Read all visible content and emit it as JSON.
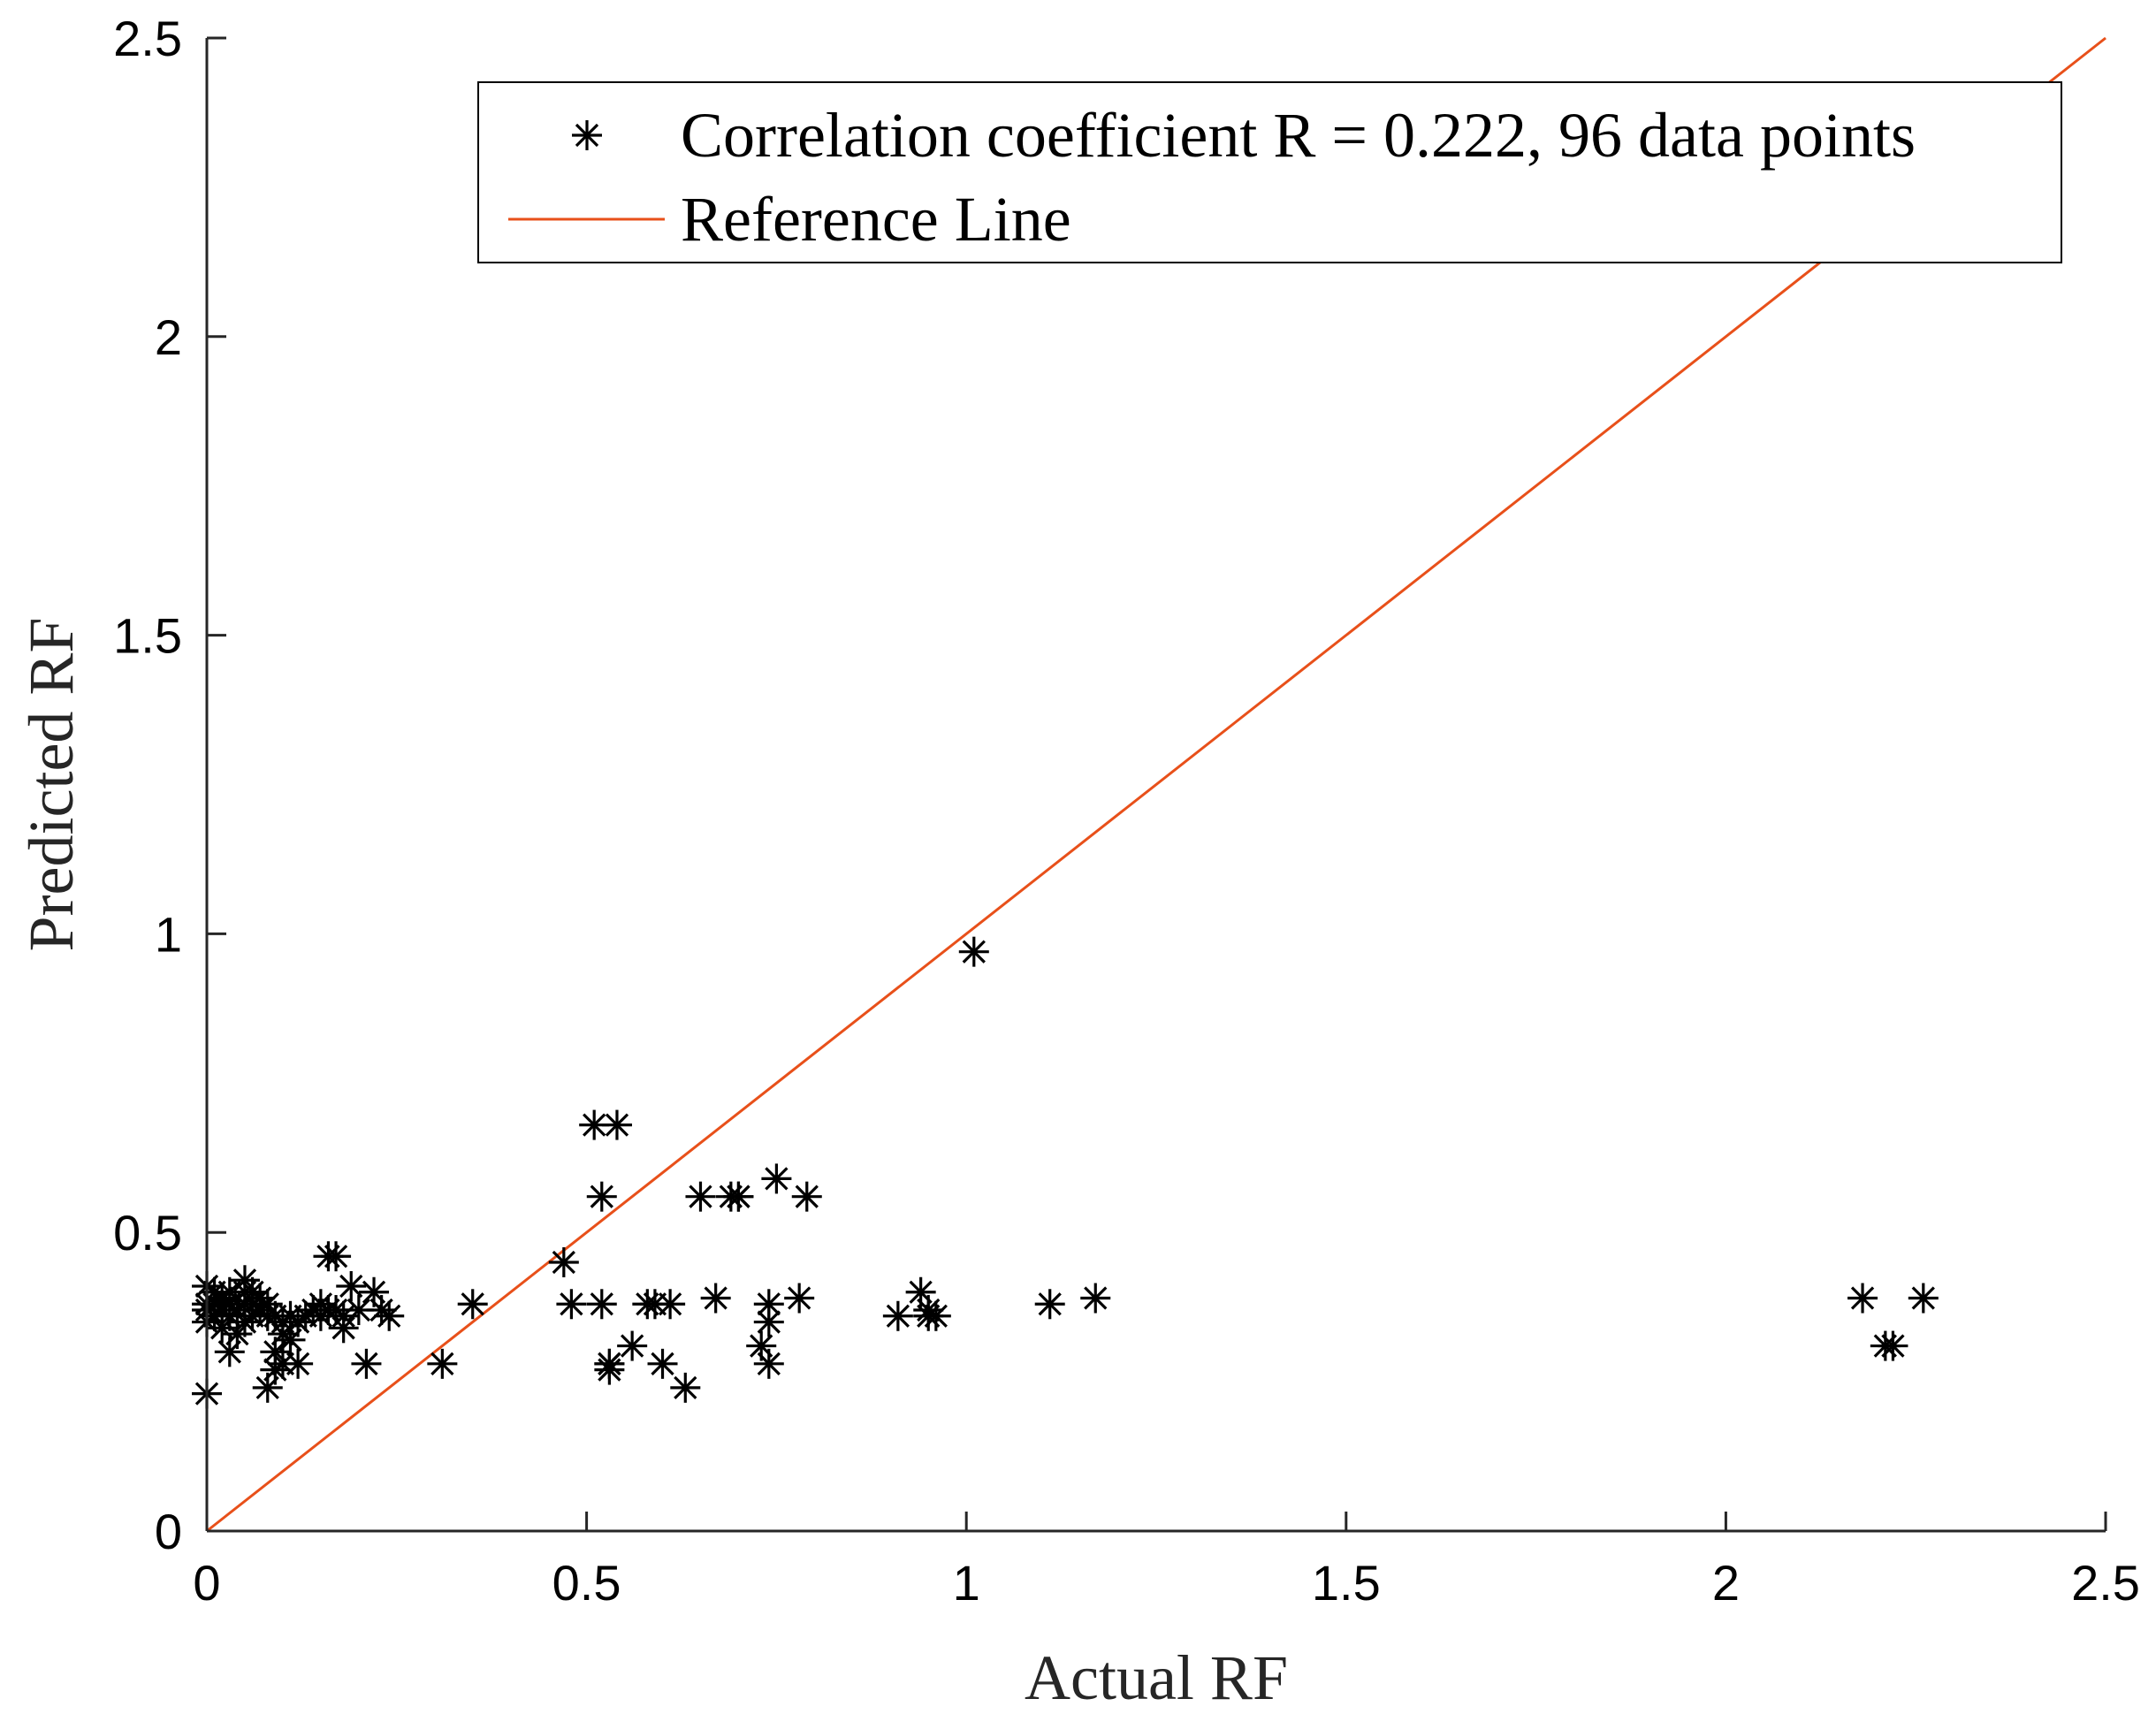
{
  "chart_data": {
    "type": "scatter",
    "title": "",
    "xlabel": "Actual RF",
    "ylabel": "Predicted RF",
    "xlim": [
      0,
      2.5
    ],
    "ylim": [
      0,
      2.5
    ],
    "xticks": [
      "0",
      "0.5",
      "1",
      "1.5",
      "2",
      "2.5"
    ],
    "yticks": [
      "0",
      "0.5",
      "1",
      "1.5",
      "2",
      "2.5"
    ],
    "grid": false,
    "legend_position": "top-right",
    "series": [
      {
        "name": "Correlation coefficient R = 0.222, 96 data points",
        "marker": "asterisk",
        "color": "#000000",
        "x": [
          0.0,
          0.0,
          0.0,
          0.0,
          0.0,
          0.01,
          0.01,
          0.01,
          0.02,
          0.02,
          0.02,
          0.03,
          0.03,
          0.03,
          0.03,
          0.04,
          0.04,
          0.05,
          0.05,
          0.05,
          0.05,
          0.06,
          0.06,
          0.06,
          0.07,
          0.07,
          0.08,
          0.08,
          0.08,
          0.09,
          0.09,
          0.09,
          0.1,
          0.1,
          0.1,
          0.11,
          0.11,
          0.12,
          0.12,
          0.13,
          0.14,
          0.15,
          0.15,
          0.16,
          0.16,
          0.17,
          0.17,
          0.18,
          0.18,
          0.19,
          0.2,
          0.21,
          0.22,
          0.23,
          0.24,
          0.31,
          0.35,
          0.47,
          0.48,
          0.51,
          0.52,
          0.52,
          0.53,
          0.53,
          0.53,
          0.54,
          0.56,
          0.58,
          0.59,
          0.6,
          0.61,
          0.63,
          0.65,
          0.67,
          0.69,
          0.7,
          0.7,
          0.73,
          0.74,
          0.74,
          0.74,
          0.75,
          0.78,
          0.79,
          0.91,
          0.94,
          0.95,
          0.95,
          0.96,
          1.01,
          1.11,
          1.17,
          2.18,
          2.21,
          2.22,
          2.26
        ],
        "y": [
          0.23,
          0.35,
          0.37,
          0.38,
          0.41,
          0.36,
          0.38,
          0.4,
          0.34,
          0.37,
          0.39,
          0.3,
          0.36,
          0.38,
          0.4,
          0.33,
          0.37,
          0.35,
          0.38,
          0.4,
          0.42,
          0.36,
          0.38,
          0.4,
          0.37,
          0.39,
          0.24,
          0.36,
          0.38,
          0.27,
          0.3,
          0.36,
          0.28,
          0.33,
          0.35,
          0.32,
          0.36,
          0.28,
          0.35,
          0.36,
          0.37,
          0.36,
          0.38,
          0.37,
          0.46,
          0.37,
          0.46,
          0.34,
          0.36,
          0.41,
          0.37,
          0.28,
          0.4,
          0.37,
          0.36,
          0.28,
          0.38,
          0.45,
          0.38,
          0.68,
          0.38,
          0.56,
          0.27,
          0.28,
          0.28,
          0.68,
          0.31,
          0.38,
          0.38,
          0.28,
          0.38,
          0.24,
          0.56,
          0.39,
          0.56,
          0.56,
          0.56,
          0.31,
          0.28,
          0.35,
          0.38,
          0.59,
          0.39,
          0.56,
          0.36,
          0.4,
          0.36,
          0.37,
          0.36,
          0.97,
          0.38,
          0.39,
          0.39,
          0.31,
          0.31,
          0.39
        ]
      },
      {
        "name": "Reference Line",
        "marker": "line",
        "color": "#e8501a",
        "x": [
          0,
          2.5
        ],
        "y": [
          0,
          2.5
        ]
      }
    ]
  }
}
